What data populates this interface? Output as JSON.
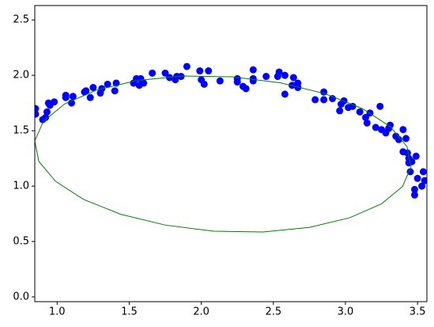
{
  "chart_data": {
    "type": "scatter",
    "xlim": [
      0.845,
      3.565
    ],
    "ylim": [
      -0.043,
      2.63
    ],
    "xticks": [
      {
        "value": 1.0,
        "label": "1.0"
      },
      {
        "value": 1.5,
        "label": "1.5"
      },
      {
        "value": 2.0,
        "label": "2.0"
      },
      {
        "value": 2.5,
        "label": "2.5"
      },
      {
        "value": 3.0,
        "label": "3.0"
      },
      {
        "value": 3.5,
        "label": "3.5"
      }
    ],
    "yticks": [
      {
        "value": 0.0,
        "label": "0.0"
      },
      {
        "value": 0.5,
        "label": "0.5"
      },
      {
        "value": 1.0,
        "label": "1.0"
      },
      {
        "value": 1.5,
        "label": "1.5"
      },
      {
        "value": 2.0,
        "label": "2.0"
      },
      {
        "value": 2.5,
        "label": "2.5"
      }
    ],
    "series": [
      {
        "type": "scatter",
        "color": "#0000ff",
        "x": [
          0.85,
          0.85,
          0.9,
          0.92,
          0.93,
          0.95,
          0.94,
          0.98,
          1.06,
          1.06,
          1.1,
          1.11,
          1.19,
          1.2,
          1.23,
          1.25,
          1.3,
          1.31,
          1.35,
          1.4,
          1.41,
          1.53,
          1.55,
          1.57,
          1.58,
          1.6,
          1.66,
          1.75,
          1.78,
          1.82,
          1.83,
          1.86,
          1.9,
          1.99,
          2.0,
          2.02,
          2.05,
          2.13,
          2.25,
          2.25,
          2.29,
          2.31,
          2.36,
          2.36,
          2.36,
          2.45,
          2.53,
          2.54,
          2.58,
          2.58,
          2.63,
          2.64,
          2.67,
          2.67,
          2.79,
          2.85,
          2.85,
          2.91,
          2.96,
          2.97,
          2.99,
          3.02,
          3.05,
          3.1,
          3.14,
          3.15,
          3.17,
          3.21,
          3.24,
          3.25,
          3.28,
          3.3,
          3.31,
          3.35,
          3.37,
          3.4,
          3.4,
          3.42,
          3.43,
          3.44,
          3.44,
          3.46,
          3.45,
          3.49,
          3.48,
          3.48,
          3.5,
          3.53,
          3.54,
          3.55
        ],
        "values": [
          1.7,
          1.65,
          1.6,
          1.62,
          1.67,
          1.73,
          1.75,
          1.76,
          1.8,
          1.82,
          1.75,
          1.81,
          1.85,
          1.86,
          1.8,
          1.89,
          1.84,
          1.88,
          1.92,
          1.86,
          1.93,
          1.93,
          1.97,
          1.91,
          1.97,
          1.93,
          2.02,
          2.02,
          1.98,
          1.96,
          1.99,
          1.99,
          2.08,
          2.04,
          1.96,
          1.92,
          2.04,
          1.95,
          1.97,
          1.94,
          1.9,
          1.88,
          2.05,
          1.97,
          1.95,
          1.99,
          1.99,
          2.03,
          2.0,
          1.83,
          1.91,
          1.98,
          1.93,
          1.89,
          1.78,
          1.85,
          1.78,
          1.79,
          1.68,
          1.74,
          1.77,
          1.71,
          1.72,
          1.67,
          1.62,
          1.57,
          1.66,
          1.53,
          1.72,
          1.51,
          1.48,
          1.52,
          1.55,
          1.45,
          1.42,
          1.51,
          1.31,
          1.43,
          1.3,
          1.25,
          1.21,
          1.22,
          1.13,
          1.27,
          0.97,
          0.92,
          1.07,
          1.0,
          1.13,
          1.05
        ]
      },
      {
        "type": "line",
        "color": "#008000",
        "x": [
          3.455,
          3.427,
          3.311,
          3.117,
          2.857,
          2.549,
          2.213,
          1.873,
          1.551,
          1.271,
          1.051,
          0.905,
          0.845,
          0.873,
          0.989,
          1.183,
          1.443,
          1.751,
          2.087,
          2.427,
          2.749,
          3.029,
          3.249,
          3.395,
          3.455
        ],
        "values": [
          1.172,
          1.357,
          1.537,
          1.7,
          1.835,
          1.932,
          1.987,
          1.994,
          1.953,
          1.866,
          1.741,
          1.585,
          1.408,
          1.223,
          1.043,
          0.88,
          0.745,
          0.648,
          0.593,
          0.586,
          0.627,
          0.714,
          0.839,
          0.995,
          1.172
        ]
      }
    ]
  }
}
